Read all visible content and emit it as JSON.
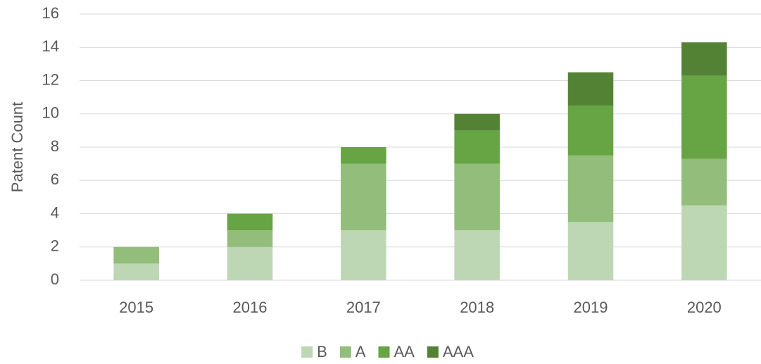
{
  "chart_data": {
    "type": "stacked_bar",
    "y_axis_label": "Patent Count",
    "categories": [
      "2015",
      "2016",
      "2017",
      "2018",
      "2019",
      "2020"
    ],
    "series": [
      {
        "name": "B",
        "color": "#bdd7b5",
        "values": [
          1,
          2,
          3,
          3,
          3.5,
          4.5
        ]
      },
      {
        "name": "A",
        "color": "#92bd7a",
        "values": [
          1,
          1,
          4,
          4,
          4,
          2.8
        ]
      },
      {
        "name": "AA",
        "color": "#66a444",
        "values": [
          0,
          1,
          1,
          2,
          3,
          5
        ]
      },
      {
        "name": "AAA",
        "color": "#548235",
        "values": [
          0,
          0,
          0,
          1,
          2,
          2
        ]
      }
    ],
    "ylim": [
      0,
      16
    ],
    "yticks": [
      0,
      2,
      4,
      6,
      8,
      10,
      12,
      14,
      16
    ],
    "grid": true,
    "legend": "bottom"
  }
}
